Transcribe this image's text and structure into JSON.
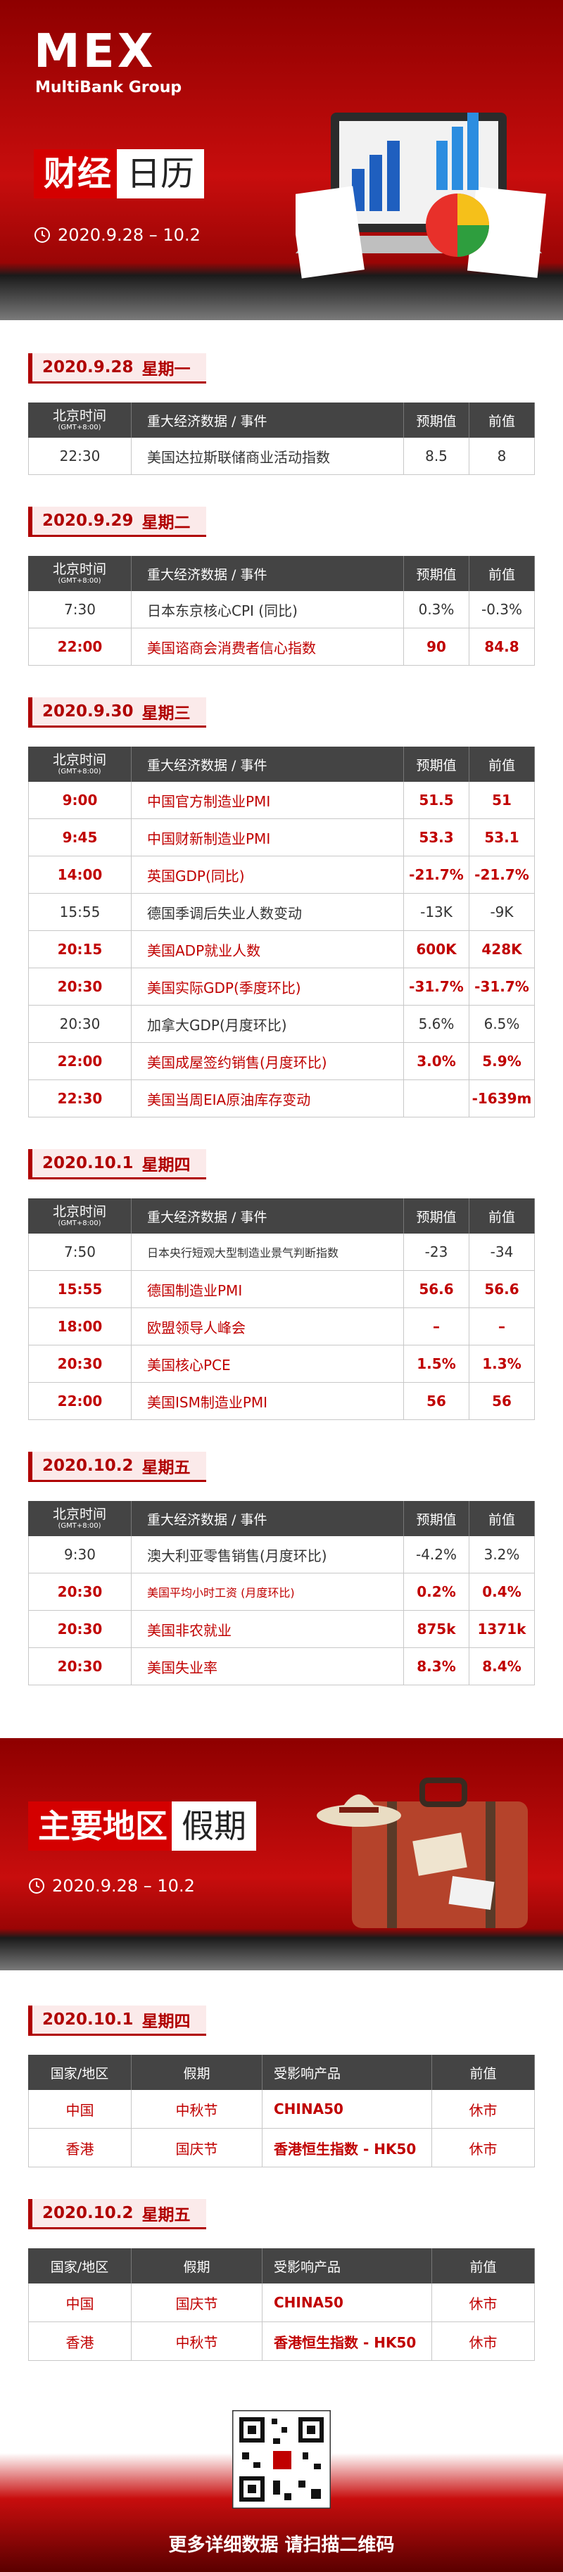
{
  "header": {
    "logo": "MEX",
    "brand": "MultiBank Group",
    "title_1": "财经",
    "title_2": "日历",
    "date_range": "2020.9.28 – 10.2"
  },
  "calendar": {
    "time_header": "北京时间",
    "time_zone": "(GMT+8:00)",
    "columns": [
      "重大经济数据 / 事件",
      "预期值",
      "前值"
    ],
    "days": [
      {
        "date": "2020.9.28",
        "weekday": "星期一",
        "rows": [
          {
            "time": "22:30",
            "event": "美国达拉斯联储商业活动指数",
            "forecast": "8.5",
            "previous": "8",
            "color": "#333333"
          }
        ]
      },
      {
        "date": "2020.9.29",
        "weekday": "星期二",
        "rows": [
          {
            "time": "7:30",
            "event": "日本东京核心CPI (同比)",
            "forecast": "0.3%",
            "previous": "-0.3%",
            "color": "#333333"
          },
          {
            "time": "22:00",
            "event": "美国谘商会消费者信心指数",
            "forecast": "90",
            "previous": "84.8",
            "color": "#c00000"
          }
        ]
      },
      {
        "date": "2020.9.30",
        "weekday": "星期三",
        "rows": [
          {
            "time": "9:00",
            "event": "中国官方制造业PMI",
            "forecast": "51.5",
            "previous": "51",
            "color": "#c00000"
          },
          {
            "time": "9:45",
            "event": "中国财新制造业PMI",
            "forecast": "53.3",
            "previous": "53.1",
            "color": "#c00000"
          },
          {
            "time": "14:00",
            "event": "英国GDP(同比)",
            "forecast": "-21.7%",
            "previous": "-21.7%",
            "color": "#c00000"
          },
          {
            "time": "15:55",
            "event": "德国季调后失业人数变动",
            "forecast": "-13K",
            "previous": "-9K",
            "color": "#333333"
          },
          {
            "time": "20:15",
            "event": "美国ADP就业人数",
            "forecast": "600K",
            "previous": "428K",
            "color": "#c00000"
          },
          {
            "time": "20:30",
            "event": "美国实际GDP(季度环比)",
            "forecast": "-31.7%",
            "previous": "-31.7%",
            "color": "#c00000"
          },
          {
            "time": "20:30",
            "event": "加拿大GDP(月度环比)",
            "forecast": "5.6%",
            "previous": "6.5%",
            "color": "#333333"
          },
          {
            "time": "22:00",
            "event": "美国成屋签约销售(月度环比)",
            "forecast": "3.0%",
            "previous": "5.9%",
            "color": "#c00000"
          },
          {
            "time": "22:30",
            "event": "美国当周EIA原油库存变动",
            "forecast": null,
            "previous": "-1639m",
            "color": "#c00000"
          }
        ]
      },
      {
        "date": "2020.10.1",
        "weekday": "星期四",
        "rows": [
          {
            "time": "7:50",
            "event": "日本央行短观大型制造业景气判断指数",
            "forecast": "-23",
            "previous": "-34",
            "color": "#333333"
          },
          {
            "time": "15:55",
            "event": "德国制造业PMI",
            "forecast": "56.6",
            "previous": "56.6",
            "color": "#c00000"
          },
          {
            "time": "18:00",
            "event": "欧盟领导人峰会",
            "forecast": "–",
            "previous": "–",
            "color": "#c00000"
          },
          {
            "time": "20:30",
            "event": "美国核心PCE",
            "forecast": "1.5%",
            "previous": "1.3%",
            "color": "#c00000"
          },
          {
            "time": "22:00",
            "event": "美国ISM制造业PMI",
            "forecast": "56",
            "previous": "56",
            "color": "#c00000"
          }
        ]
      },
      {
        "date": "2020.10.2",
        "weekday": "星期五",
        "rows": [
          {
            "time": "9:30",
            "event": "澳大利亚零售销售(月度环比)",
            "forecast": "-4.2%",
            "previous": "3.2%",
            "color": "#333333"
          },
          {
            "time": "20:30",
            "event": "美国平均小时工资 (月度环比)",
            "forecast": "0.2%",
            "previous": "0.4%",
            "color": "#c00000"
          },
          {
            "time": "20:30",
            "event": "美国非农就业",
            "forecast": "875k",
            "previous": "1371k",
            "color": "#c00000"
          },
          {
            "time": "20:30",
            "event": "美国失业率",
            "forecast": "8.3%",
            "previous": "8.4%",
            "color": "#c00000"
          }
        ]
      }
    ]
  },
  "holidays": {
    "title_1": "主要地区",
    "title_2": "假期",
    "date_range": "2020.9.28 – 10.2",
    "columns": [
      "国家/地区",
      "假期",
      "受影响产品",
      "前值"
    ],
    "color": "#c00000",
    "days": [
      {
        "date": "2020.10.1",
        "weekday": "星期四",
        "rows": [
          [
            "中国",
            "中秋节",
            "CHINA50",
            "休市"
          ],
          [
            "香港",
            "国庆节",
            "香港恒生指数 - HK50",
            "休市"
          ]
        ]
      },
      {
        "date": "2020.10.2",
        "weekday": "星期五",
        "rows": [
          [
            "中国",
            "国庆节",
            "CHINA50",
            "休市"
          ],
          [
            "香港",
            "中秋节",
            "香港恒生指数 - HK50",
            "休市"
          ]
        ]
      }
    ]
  },
  "footer": {
    "caption": "更多详细数据 请扫描二维码"
  }
}
